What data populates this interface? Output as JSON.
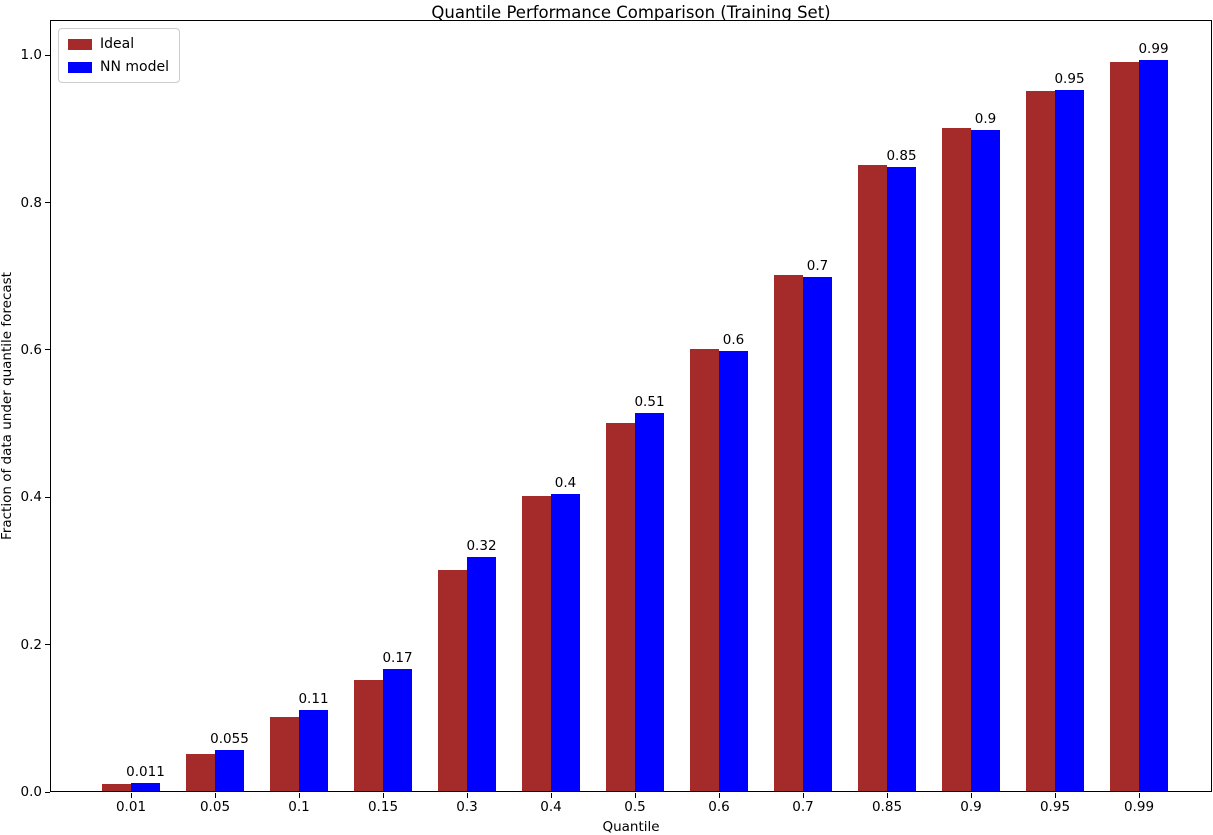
{
  "chart_data": {
    "type": "bar",
    "title": "Quantile Performance Comparison (Training Set)",
    "xlabel": "Quantile",
    "ylabel": "Fraction of data under quantile forecast",
    "categories": [
      "0.01",
      "0.05",
      "0.1",
      "0.15",
      "0.3",
      "0.4",
      "0.5",
      "0.6",
      "0.7",
      "0.85",
      "0.9",
      "0.95",
      "0.99"
    ],
    "series": [
      {
        "name": "Ideal",
        "color": "#A52A2A",
        "values": [
          0.01,
          0.05,
          0.1,
          0.15,
          0.3,
          0.4,
          0.5,
          0.6,
          0.7,
          0.85,
          0.9,
          0.95,
          0.99
        ]
      },
      {
        "name": "NN model",
        "color": "#0000FF",
        "values": [
          0.011,
          0.055,
          0.11,
          0.166,
          0.317,
          0.403,
          0.513,
          0.597,
          0.698,
          0.847,
          0.897,
          0.951,
          0.992
        ],
        "bar_labels": [
          "0.011",
          "0.055",
          "0.11",
          "0.17",
          "0.32",
          "0.4",
          "0.51",
          "0.6",
          "0.7",
          "0.85",
          "0.9",
          "0.95",
          "0.99"
        ]
      }
    ],
    "yticks": [
      "0.0",
      "0.2",
      "0.4",
      "0.6",
      "0.8",
      "1.0"
    ],
    "ylim": [
      0,
      1.045
    ],
    "legend_position": "upper left",
    "grid": false,
    "axis_color": "#000000",
    "background_color": "#ffffff"
  }
}
